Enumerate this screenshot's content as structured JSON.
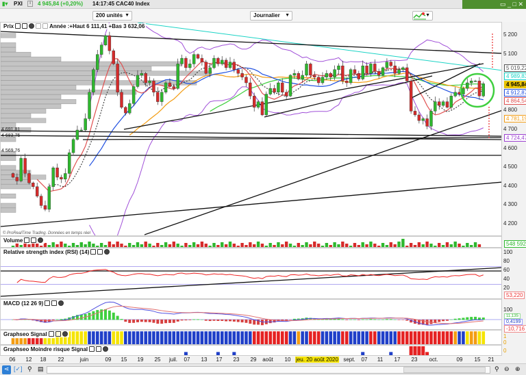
{
  "header": {
    "ticker": "PXI",
    "price_change": "4 945,84 (+0,20%)",
    "time_name": "14:17:45 CAC40 Index",
    "units": "200 unités",
    "period": "Journalier"
  },
  "window": {
    "controls": "▭ _ □ ✕"
  },
  "price_panel": {
    "title": "Prix",
    "year_info": "Année :+Haut 6 111,41 +Bas 3 632,06",
    "copyright": "© ProRealTime Trading. Données en temps réel",
    "axis_ticks": [
      "5 200",
      "5 100",
      "4 800",
      "4 700",
      "4 600",
      "4 500",
      "4 400",
      "4 300",
      "4 200"
    ],
    "right_tags": [
      {
        "text": "5 019,22",
        "color": "#555555"
      },
      {
        "text": "4 989,83",
        "color": "#19d3c5"
      },
      {
        "text": "4 945,84",
        "color": "#e8c300"
      },
      {
        "text": "4 912,87",
        "color": "#1f4fe0"
      },
      {
        "text": "4 864,54",
        "color": "#e05050"
      },
      {
        "text": "4 781,19",
        "color": "#f39c12"
      },
      {
        "text": "4 724,47",
        "color": "#9b3fd0"
      }
    ],
    "left_tags": [
      "4 691,81",
      "4 683,75",
      "4 569,76"
    ]
  },
  "volume_panel": {
    "title": "Volume",
    "value": "548 592"
  },
  "rsi_panel": {
    "title": "Relative strength index (RSI) (14)",
    "value": "53,220",
    "ticks": [
      "100",
      "80",
      "60",
      "40",
      "20"
    ]
  },
  "macd_panel": {
    "title": "MACD (12 26 9)",
    "ticks": [
      "100"
    ],
    "values": [
      "11,135",
      "0,4199",
      "-10,716"
    ]
  },
  "signal_panel": {
    "title": "Graphseo Signal",
    "ticks": [
      "1",
      "0"
    ]
  },
  "risk_panel": {
    "title": "Graphseo Moindre risque Signal",
    "ticks": [
      "0"
    ]
  },
  "x_axis": {
    "labels": [
      "06",
      "12",
      "18",
      "22",
      "juin",
      "09",
      "15",
      "19",
      "25",
      "juil.",
      "07",
      "13",
      "17",
      "23",
      "29",
      "août",
      "10",
      "jeu. 20 août 2020",
      "sept.",
      "07",
      "11",
      "17",
      "23",
      "oct.",
      "09",
      "15",
      "21"
    ]
  },
  "colors": {
    "up": "#2eb82e",
    "down": "#d62b2b",
    "signal_blue": "#1f3fc8",
    "signal_red": "#e52222",
    "signal_yellow": "#f5e400",
    "signal_orange": "#f39c12"
  },
  "chart_data": {
    "type": "candlestick",
    "ylim": [
      4200,
      5200
    ],
    "closes": [
      4450,
      4430,
      4550,
      4470,
      4420,
      4400,
      4350,
      4300,
      4280,
      4400,
      4500,
      4450,
      4440,
      4470,
      4580,
      4650,
      4700,
      4700,
      4760,
      4900,
      5020,
      5100,
      5150,
      5200,
      5120,
      5050,
      4900,
      4820,
      4790,
      4840,
      4930,
      4990,
      5000,
      4950,
      4960,
      4900,
      4850,
      4900,
      4950,
      4930,
      4920,
      5050,
      5080,
      5030,
      5050,
      5100,
      5080,
      5060,
      5000,
      5030,
      5080,
      5050,
      5070,
      5030,
      5060,
      5020,
      5000,
      4980,
      4950,
      4880,
      4820,
      4850,
      4780,
      4890,
      4920,
      4900,
      4950,
      4900,
      4880,
      4990,
      5000,
      4970,
      4990,
      5050,
      4990,
      4980,
      4950,
      4980,
      5000,
      4980,
      5020,
      5040,
      4960,
      4950,
      5020,
      5000,
      4970,
      5040,
      5000,
      5050,
      5010,
      4990,
      5030,
      5060,
      5040,
      5000,
      5020,
      5030,
      4960,
      4800,
      4780,
      4750,
      4760,
      4720,
      4800,
      4850,
      4830,
      4850,
      4820,
      4880,
      4900,
      4890,
      4920,
      4950,
      4960,
      4960,
      4880,
      4945
    ],
    "signal_segments": [
      [
        "orange",
        4
      ],
      [
        "red",
        4
      ],
      [
        "yellow",
        11
      ],
      [
        "blue",
        6
      ],
      [
        "yellow",
        3
      ],
      [
        "blue",
        32
      ],
      [
        "red",
        9
      ],
      [
        "blue",
        2
      ],
      [
        "orange",
        1
      ],
      [
        "blue",
        2
      ],
      [
        "red",
        3
      ],
      [
        "blue",
        5
      ],
      [
        "red",
        2
      ],
      [
        "blue",
        5
      ],
      [
        "red",
        2
      ],
      [
        "blue",
        5
      ],
      [
        "red",
        14
      ],
      [
        "orange",
        1
      ],
      [
        "blue",
        2
      ],
      [
        "yellow",
        1
      ],
      [
        "orange",
        2
      ],
      [
        "yellow",
        2
      ]
    ],
    "risk_marks": [
      {
        "day": 43,
        "color": "blue",
        "level": 0.4
      },
      {
        "day": 51,
        "color": "blue",
        "level": 0.4
      },
      {
        "day": 55,
        "color": "blue",
        "level": 0.4
      },
      {
        "day": 87,
        "color": "blue",
        "level": 0.4
      },
      {
        "day": 94,
        "color": "blue",
        "level": 0.4
      },
      {
        "day": 99,
        "color": "red",
        "level": 1
      },
      {
        "day": 100,
        "color": "red",
        "level": 1
      },
      {
        "day": 101,
        "color": "red",
        "level": 1
      },
      {
        "day": 102,
        "color": "red",
        "level": 1
      },
      {
        "day": 103,
        "color": "red",
        "level": 0.4
      }
    ]
  }
}
